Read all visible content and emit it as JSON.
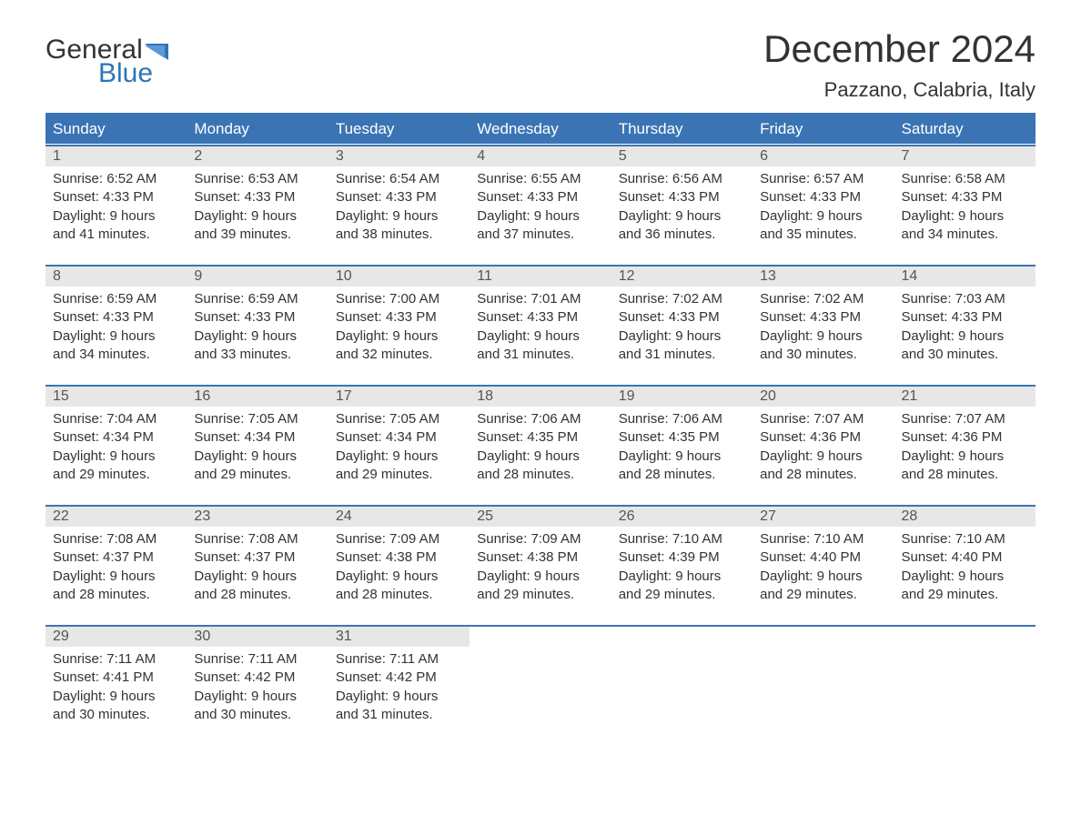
{
  "brand": {
    "word1": "General",
    "word2": "Blue",
    "accent": "#2e75b6"
  },
  "title": "December 2024",
  "location": "Pazzano, Calabria, Italy",
  "colors": {
    "header_bg": "#3a74b4",
    "header_text": "#ffffff",
    "daynum_bg": "#e7e7e7",
    "text": "#333333",
    "page_bg": "#ffffff",
    "rule": "#3a74b4"
  },
  "typography": {
    "title_fontsize": 42,
    "location_fontsize": 22,
    "dow_fontsize": 17,
    "body_fontsize": 15,
    "logo_fontsize": 30
  },
  "days_of_week": [
    "Sunday",
    "Monday",
    "Tuesday",
    "Wednesday",
    "Thursday",
    "Friday",
    "Saturday"
  ],
  "weeks": [
    [
      {
        "n": "1",
        "sunrise": "Sunrise: 6:52 AM",
        "sunset": "Sunset: 4:33 PM",
        "d1": "Daylight: 9 hours",
        "d2": "and 41 minutes."
      },
      {
        "n": "2",
        "sunrise": "Sunrise: 6:53 AM",
        "sunset": "Sunset: 4:33 PM",
        "d1": "Daylight: 9 hours",
        "d2": "and 39 minutes."
      },
      {
        "n": "3",
        "sunrise": "Sunrise: 6:54 AM",
        "sunset": "Sunset: 4:33 PM",
        "d1": "Daylight: 9 hours",
        "d2": "and 38 minutes."
      },
      {
        "n": "4",
        "sunrise": "Sunrise: 6:55 AM",
        "sunset": "Sunset: 4:33 PM",
        "d1": "Daylight: 9 hours",
        "d2": "and 37 minutes."
      },
      {
        "n": "5",
        "sunrise": "Sunrise: 6:56 AM",
        "sunset": "Sunset: 4:33 PM",
        "d1": "Daylight: 9 hours",
        "d2": "and 36 minutes."
      },
      {
        "n": "6",
        "sunrise": "Sunrise: 6:57 AM",
        "sunset": "Sunset: 4:33 PM",
        "d1": "Daylight: 9 hours",
        "d2": "and 35 minutes."
      },
      {
        "n": "7",
        "sunrise": "Sunrise: 6:58 AM",
        "sunset": "Sunset: 4:33 PM",
        "d1": "Daylight: 9 hours",
        "d2": "and 34 minutes."
      }
    ],
    [
      {
        "n": "8",
        "sunrise": "Sunrise: 6:59 AM",
        "sunset": "Sunset: 4:33 PM",
        "d1": "Daylight: 9 hours",
        "d2": "and 34 minutes."
      },
      {
        "n": "9",
        "sunrise": "Sunrise: 6:59 AM",
        "sunset": "Sunset: 4:33 PM",
        "d1": "Daylight: 9 hours",
        "d2": "and 33 minutes."
      },
      {
        "n": "10",
        "sunrise": "Sunrise: 7:00 AM",
        "sunset": "Sunset: 4:33 PM",
        "d1": "Daylight: 9 hours",
        "d2": "and 32 minutes."
      },
      {
        "n": "11",
        "sunrise": "Sunrise: 7:01 AM",
        "sunset": "Sunset: 4:33 PM",
        "d1": "Daylight: 9 hours",
        "d2": "and 31 minutes."
      },
      {
        "n": "12",
        "sunrise": "Sunrise: 7:02 AM",
        "sunset": "Sunset: 4:33 PM",
        "d1": "Daylight: 9 hours",
        "d2": "and 31 minutes."
      },
      {
        "n": "13",
        "sunrise": "Sunrise: 7:02 AM",
        "sunset": "Sunset: 4:33 PM",
        "d1": "Daylight: 9 hours",
        "d2": "and 30 minutes."
      },
      {
        "n": "14",
        "sunrise": "Sunrise: 7:03 AM",
        "sunset": "Sunset: 4:33 PM",
        "d1": "Daylight: 9 hours",
        "d2": "and 30 minutes."
      }
    ],
    [
      {
        "n": "15",
        "sunrise": "Sunrise: 7:04 AM",
        "sunset": "Sunset: 4:34 PM",
        "d1": "Daylight: 9 hours",
        "d2": "and 29 minutes."
      },
      {
        "n": "16",
        "sunrise": "Sunrise: 7:05 AM",
        "sunset": "Sunset: 4:34 PM",
        "d1": "Daylight: 9 hours",
        "d2": "and 29 minutes."
      },
      {
        "n": "17",
        "sunrise": "Sunrise: 7:05 AM",
        "sunset": "Sunset: 4:34 PM",
        "d1": "Daylight: 9 hours",
        "d2": "and 29 minutes."
      },
      {
        "n": "18",
        "sunrise": "Sunrise: 7:06 AM",
        "sunset": "Sunset: 4:35 PM",
        "d1": "Daylight: 9 hours",
        "d2": "and 28 minutes."
      },
      {
        "n": "19",
        "sunrise": "Sunrise: 7:06 AM",
        "sunset": "Sunset: 4:35 PM",
        "d1": "Daylight: 9 hours",
        "d2": "and 28 minutes."
      },
      {
        "n": "20",
        "sunrise": "Sunrise: 7:07 AM",
        "sunset": "Sunset: 4:36 PM",
        "d1": "Daylight: 9 hours",
        "d2": "and 28 minutes."
      },
      {
        "n": "21",
        "sunrise": "Sunrise: 7:07 AM",
        "sunset": "Sunset: 4:36 PM",
        "d1": "Daylight: 9 hours",
        "d2": "and 28 minutes."
      }
    ],
    [
      {
        "n": "22",
        "sunrise": "Sunrise: 7:08 AM",
        "sunset": "Sunset: 4:37 PM",
        "d1": "Daylight: 9 hours",
        "d2": "and 28 minutes."
      },
      {
        "n": "23",
        "sunrise": "Sunrise: 7:08 AM",
        "sunset": "Sunset: 4:37 PM",
        "d1": "Daylight: 9 hours",
        "d2": "and 28 minutes."
      },
      {
        "n": "24",
        "sunrise": "Sunrise: 7:09 AM",
        "sunset": "Sunset: 4:38 PM",
        "d1": "Daylight: 9 hours",
        "d2": "and 28 minutes."
      },
      {
        "n": "25",
        "sunrise": "Sunrise: 7:09 AM",
        "sunset": "Sunset: 4:38 PM",
        "d1": "Daylight: 9 hours",
        "d2": "and 29 minutes."
      },
      {
        "n": "26",
        "sunrise": "Sunrise: 7:10 AM",
        "sunset": "Sunset: 4:39 PM",
        "d1": "Daylight: 9 hours",
        "d2": "and 29 minutes."
      },
      {
        "n": "27",
        "sunrise": "Sunrise: 7:10 AM",
        "sunset": "Sunset: 4:40 PM",
        "d1": "Daylight: 9 hours",
        "d2": "and 29 minutes."
      },
      {
        "n": "28",
        "sunrise": "Sunrise: 7:10 AM",
        "sunset": "Sunset: 4:40 PM",
        "d1": "Daylight: 9 hours",
        "d2": "and 29 minutes."
      }
    ],
    [
      {
        "n": "29",
        "sunrise": "Sunrise: 7:11 AM",
        "sunset": "Sunset: 4:41 PM",
        "d1": "Daylight: 9 hours",
        "d2": "and 30 minutes."
      },
      {
        "n": "30",
        "sunrise": "Sunrise: 7:11 AM",
        "sunset": "Sunset: 4:42 PM",
        "d1": "Daylight: 9 hours",
        "d2": "and 30 minutes."
      },
      {
        "n": "31",
        "sunrise": "Sunrise: 7:11 AM",
        "sunset": "Sunset: 4:42 PM",
        "d1": "Daylight: 9 hours",
        "d2": "and 31 minutes."
      },
      null,
      null,
      null,
      null
    ]
  ]
}
